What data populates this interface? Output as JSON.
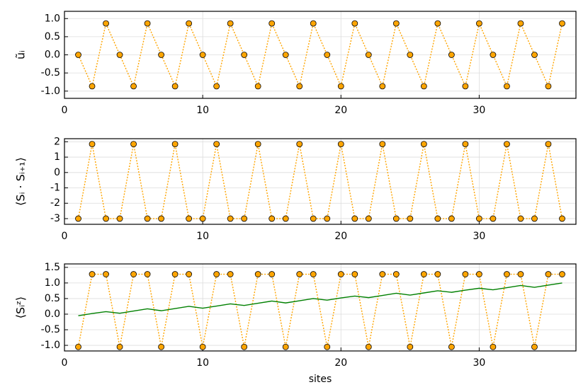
{
  "chart_data": [
    {
      "type": "line",
      "ylabel": "ũᵢ",
      "x": [
        1,
        2,
        3,
        4,
        5,
        6,
        7,
        8,
        9,
        10,
        11,
        12,
        13,
        14,
        15,
        16,
        17,
        18,
        19,
        20,
        21,
        22,
        23,
        24,
        25,
        26,
        27,
        28,
        29,
        30,
        31,
        32,
        33,
        34,
        35,
        36
      ],
      "series": [
        {
          "color": "#ffa500",
          "linestyle": "dotted",
          "marker": true,
          "values": [
            0,
            -0.866,
            0.866,
            0,
            -0.866,
            0.866,
            0,
            -0.866,
            0.866,
            0,
            -0.866,
            0.866,
            0,
            -0.866,
            0.866,
            0,
            -0.866,
            0.866,
            0,
            -0.866,
            0.866,
            0,
            -0.866,
            0.866,
            0,
            -0.866,
            0.866,
            0,
            -0.866,
            0.866,
            0,
            -0.866,
            0.866,
            0,
            -0.866,
            0.866
          ]
        }
      ],
      "xlim": [
        0,
        37
      ],
      "xticks": [
        0,
        10,
        20,
        30
      ],
      "ylim": [
        -1.2,
        1.2
      ],
      "yticks": [
        {
          "value": -1,
          "label": "-1.0"
        },
        -0.5,
        {
          "value": 0,
          "label": "0.0"
        },
        0.5,
        {
          "value": 1,
          "label": "1.0"
        }
      ],
      "grid": true
    },
    {
      "type": "line",
      "ylabel": "⟨Sᵢ · Sᵢ₊₁⟩",
      "x": [
        1,
        2,
        3,
        4,
        5,
        6,
        7,
        8,
        9,
        10,
        11,
        12,
        13,
        14,
        15,
        16,
        17,
        18,
        19,
        20,
        21,
        22,
        23,
        24,
        25,
        26,
        27,
        28,
        29,
        30,
        31,
        32,
        33,
        34,
        35,
        36
      ],
      "series": [
        {
          "color": "#ffa500",
          "linestyle": "dotted",
          "marker": true,
          "values": [
            -3,
            1.85,
            -3,
            -3,
            1.85,
            -3,
            -3,
            1.85,
            -3,
            -3,
            1.85,
            -3,
            -3,
            1.85,
            -3,
            -3,
            1.85,
            -3,
            -3,
            1.85,
            -3,
            -3,
            1.85,
            -3,
            -3,
            1.85,
            -3,
            -3,
            1.85,
            -3,
            -3,
            1.85,
            -3,
            -3,
            1.85,
            -3
          ]
        }
      ],
      "xlim": [
        0,
        37
      ],
      "xticks": [
        0,
        10,
        20,
        30
      ],
      "ylim": [
        -3.37,
        2.2
      ],
      "yticks": [
        -3,
        -2,
        -1,
        0,
        1,
        2
      ],
      "grid": true
    },
    {
      "type": "line",
      "ylabel": "⟨Sᵢᶻ⟩",
      "xlabel": "sites",
      "x": [
        1,
        2,
        3,
        4,
        5,
        6,
        7,
        8,
        9,
        10,
        11,
        12,
        13,
        14,
        15,
        16,
        17,
        18,
        19,
        20,
        21,
        22,
        23,
        24,
        25,
        26,
        27,
        28,
        29,
        30,
        31,
        32,
        33,
        34,
        35,
        36
      ],
      "series": [
        {
          "color": "#ffa500",
          "linestyle": "dotted",
          "marker": true,
          "values": [
            -1.05,
            1.28,
            1.28,
            -1.05,
            1.28,
            1.28,
            -1.05,
            1.28,
            1.28,
            -1.05,
            1.28,
            1.28,
            -1.05,
            1.28,
            1.28,
            -1.05,
            1.28,
            1.28,
            -1.05,
            1.28,
            1.28,
            -1.05,
            1.28,
            1.28,
            -1.05,
            1.28,
            1.28,
            -1.05,
            1.28,
            1.28,
            -1.05,
            1.28,
            1.28,
            -1.05,
            1.28,
            1.28
          ]
        },
        {
          "color": "#008000",
          "linestyle": "solid",
          "marker": false,
          "values": [
            -0.05,
            0.02,
            0.08,
            0.03,
            0.1,
            0.17,
            0.11,
            0.18,
            0.25,
            0.19,
            0.26,
            0.33,
            0.28,
            0.35,
            0.42,
            0.36,
            0.43,
            0.5,
            0.45,
            0.52,
            0.58,
            0.53,
            0.6,
            0.67,
            0.61,
            0.68,
            0.75,
            0.7,
            0.77,
            0.83,
            0.78,
            0.85,
            0.92,
            0.86,
            0.93,
            1.0
          ]
        }
      ],
      "xlim": [
        0,
        37
      ],
      "xticks": [
        0,
        10,
        20,
        30
      ],
      "ylim": [
        -1.18,
        1.61
      ],
      "yticks": [
        {
          "value": -1,
          "label": "-1.0"
        },
        -0.5,
        {
          "value": 0,
          "label": "0.0"
        },
        0.5,
        {
          "value": 1,
          "label": "1.0"
        },
        1.5
      ],
      "grid": true
    }
  ]
}
